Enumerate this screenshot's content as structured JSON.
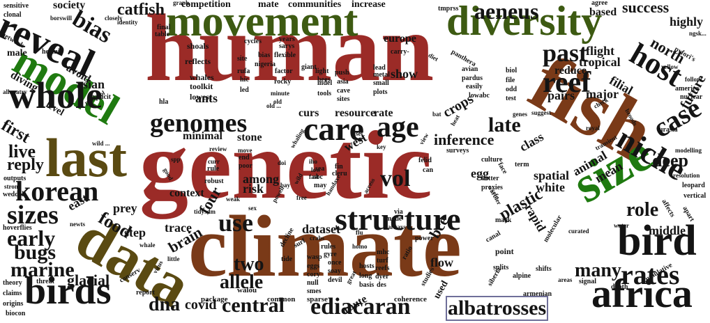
{
  "colors": {
    "red": "#9b2b27",
    "green": "#3d5a12",
    "olive": "#5a4a12",
    "brown": "#7a3a18",
    "black": "#141414",
    "bright_green": "#1f7a10"
  },
  "words": [
    {
      "text": "human",
      "color": "red"
    },
    {
      "text": "genetic",
      "color": "red"
    },
    {
      "text": "climate",
      "color": "brown"
    },
    {
      "text": "movement",
      "color": "green"
    },
    {
      "text": "diversity",
      "color": "green"
    },
    {
      "text": "fish",
      "color": "brown"
    },
    {
      "text": "data",
      "color": "olive"
    },
    {
      "text": "last",
      "color": "olive"
    },
    {
      "text": "model",
      "color": "bright_green"
    },
    {
      "text": "size",
      "color": "bright_green"
    },
    {
      "text": "reveal",
      "color": "black"
    },
    {
      "text": "whole",
      "color": "black"
    },
    {
      "text": "birds",
      "color": "black"
    },
    {
      "text": "bird",
      "color": "black"
    },
    {
      "text": "africa",
      "color": "black"
    },
    {
      "text": "structure",
      "color": "black"
    },
    {
      "text": "genomes",
      "color": "black"
    },
    {
      "text": "care",
      "color": "black"
    },
    {
      "text": "age",
      "color": "black"
    },
    {
      "text": "reef",
      "color": "black"
    },
    {
      "text": "past",
      "color": "black"
    },
    {
      "text": "niche",
      "color": "black"
    },
    {
      "text": "case",
      "color": "black"
    },
    {
      "text": "host",
      "color": "black"
    },
    {
      "text": "korean",
      "color": "black"
    },
    {
      "text": "sizes",
      "color": "black"
    },
    {
      "text": "rates",
      "color": "black"
    },
    {
      "text": "central",
      "color": "black"
    },
    {
      "text": "ediacaran",
      "color": "black"
    },
    {
      "text": "albatrosses",
      "color": "black"
    },
    {
      "text": "aeneus",
      "color": "black"
    },
    {
      "text": "bias",
      "color": "black"
    },
    {
      "text": "catfish",
      "color": "black"
    },
    {
      "text": "use",
      "color": "black"
    },
    {
      "text": "vol",
      "color": "black"
    },
    {
      "text": "late",
      "color": "black"
    },
    {
      "text": "marine",
      "color": "black"
    },
    {
      "text": "early",
      "color": "black"
    },
    {
      "text": "bugs",
      "color": "black"
    },
    {
      "text": "food",
      "color": "black"
    },
    {
      "text": "many",
      "color": "black"
    },
    {
      "text": "role",
      "color": "black"
    },
    {
      "text": "deep",
      "color": "black"
    },
    {
      "text": "two",
      "color": "black"
    },
    {
      "text": "allele",
      "color": "black"
    },
    {
      "text": "dna",
      "color": "black"
    },
    {
      "text": "covid",
      "color": "black"
    },
    {
      "text": "four",
      "color": "black"
    },
    {
      "text": "brain",
      "color": "black"
    },
    {
      "text": "glacial",
      "color": "black"
    },
    {
      "text": "success",
      "color": "black"
    },
    {
      "text": "north",
      "color": "black"
    },
    {
      "text": "highly",
      "color": "black"
    },
    {
      "text": "future",
      "color": "black"
    },
    {
      "text": "middle",
      "color": "black"
    },
    {
      "text": "live",
      "color": "black"
    },
    {
      "text": "first",
      "color": "black"
    },
    {
      "text": "reply",
      "color": "black"
    },
    {
      "text": "asian",
      "color": "black"
    },
    {
      "text": "society",
      "color": "black"
    },
    {
      "text": "competition",
      "color": "black"
    },
    {
      "text": "mate",
      "color": "black"
    },
    {
      "text": "communities",
      "color": "black"
    },
    {
      "text": "increase",
      "color": "black"
    },
    {
      "text": "flight",
      "color": "black"
    },
    {
      "text": "tropical",
      "color": "black"
    },
    {
      "text": "reduce",
      "color": "black"
    },
    {
      "text": "pairs",
      "color": "black"
    },
    {
      "text": "major",
      "color": "black"
    },
    {
      "text": "filial",
      "color": "black"
    },
    {
      "text": "inference",
      "color": "black"
    },
    {
      "text": "crops",
      "color": "black"
    },
    {
      "text": "class",
      "color": "black"
    },
    {
      "text": "egg",
      "color": "black"
    },
    {
      "text": "spatial",
      "color": "black"
    },
    {
      "text": "white",
      "color": "black"
    },
    {
      "text": "animal",
      "color": "black"
    },
    {
      "text": "mean",
      "color": "black"
    },
    {
      "text": "plastic",
      "color": "black"
    },
    {
      "text": "rapid",
      "color": "black"
    },
    {
      "text": "bce",
      "color": "black"
    },
    {
      "text": "flow",
      "color": "black"
    },
    {
      "text": "dataset",
      "color": "black"
    },
    {
      "text": "trace",
      "color": "black"
    },
    {
      "text": "context",
      "color": "black"
    },
    {
      "text": "among",
      "color": "black"
    },
    {
      "text": "risk",
      "color": "black"
    },
    {
      "text": "minimal",
      "color": "black"
    },
    {
      "text": "stone",
      "color": "black"
    },
    {
      "text": "west",
      "color": "black"
    },
    {
      "text": "show",
      "color": "black"
    },
    {
      "text": "europe",
      "color": "black"
    },
    {
      "text": "resource",
      "color": "black"
    },
    {
      "text": "rate",
      "color": "black"
    },
    {
      "text": "curs",
      "color": "black"
    },
    {
      "text": "east",
      "color": "black"
    },
    {
      "text": "prey",
      "color": "black"
    },
    {
      "text": "step",
      "color": "black"
    },
    {
      "text": "ants",
      "color": "black"
    },
    {
      "text": "avoid",
      "color": "black"
    },
    {
      "text": "level",
      "color": "black"
    },
    {
      "text": "diving",
      "color": "black"
    },
    {
      "text": "male",
      "color": "black"
    },
    {
      "text": "route",
      "color": "black"
    },
    {
      "text": "used",
      "color": "black"
    },
    {
      "text": "based",
      "color": "black"
    },
    {
      "text": "agree",
      "color": "black"
    },
    {
      "text": "sensitive",
      "color": "black"
    },
    {
      "text": "clonal",
      "color": "black"
    },
    {
      "text": "network",
      "color": "black"
    },
    {
      "text": "hermit",
      "color": "black"
    },
    {
      "text": "allopatry",
      "color": "black"
    },
    {
      "text": "protocol",
      "color": "black"
    },
    {
      "text": "explicit",
      "color": "black"
    },
    {
      "text": "whales",
      "color": "black"
    },
    {
      "text": "toolkit",
      "color": "black"
    },
    {
      "text": "lowest",
      "color": "black"
    },
    {
      "text": "shoals",
      "color": "black"
    },
    {
      "text": "reflects",
      "color": "black"
    },
    {
      "text": "cycles",
      "color": "black"
    },
    {
      "text": "nigeria",
      "color": "black"
    },
    {
      "text": "giant",
      "color": "black"
    },
    {
      "text": "push",
      "color": "black"
    },
    {
      "text": "asia",
      "color": "black"
    },
    {
      "text": "cave",
      "color": "black"
    },
    {
      "text": "sites",
      "color": "black"
    },
    {
      "text": "tools",
      "color": "black"
    },
    {
      "text": "indel",
      "color": "black"
    },
    {
      "text": "bias",
      "color": "black"
    },
    {
      "text": "panthera",
      "color": "black"
    },
    {
      "text": "avian",
      "color": "black"
    },
    {
      "text": "pardus",
      "color": "black"
    },
    {
      "text": "easily",
      "color": "black"
    },
    {
      "text": "lowabc",
      "color": "black"
    },
    {
      "text": "biol",
      "color": "black"
    },
    {
      "text": "file",
      "color": "black"
    },
    {
      "text": "odd",
      "color": "black"
    },
    {
      "text": "test",
      "color": "black"
    },
    {
      "text": "genes",
      "color": "black"
    },
    {
      "text": "suggest",
      "color": "black"
    },
    {
      "text": "royal",
      "color": "black"
    },
    {
      "text": "broods",
      "color": "black"
    },
    {
      "text": "urasia",
      "color": "black"
    },
    {
      "text": "modelling",
      "color": "black"
    },
    {
      "text": "resolution",
      "color": "black"
    },
    {
      "text": "leopard",
      "color": "black"
    },
    {
      "text": "vertical",
      "color": "black"
    },
    {
      "text": "affects",
      "color": "black"
    },
    {
      "text": "apart",
      "color": "black"
    },
    {
      "text": "curated",
      "color": "black"
    },
    {
      "text": "water",
      "color": "black"
    },
    {
      "text": "molecular",
      "color": "black"
    },
    {
      "text": "shifts",
      "color": "black"
    },
    {
      "text": "alpine",
      "color": "black"
    },
    {
      "text": "areas",
      "color": "black"
    },
    {
      "text": "signal",
      "color": "black"
    },
    {
      "text": "depth",
      "color": "black"
    },
    {
      "text": "cumulative",
      "color": "black"
    },
    {
      "text": "armenian",
      "color": "black"
    },
    {
      "text": "siberia",
      "color": "black"
    },
    {
      "text": "splits",
      "color": "black"
    },
    {
      "text": "point",
      "color": "black"
    },
    {
      "text": "canal",
      "color": "black"
    },
    {
      "text": "studies",
      "color": "black"
    },
    {
      "text": "coherence",
      "color": "black"
    },
    {
      "text": "sparse",
      "color": "black"
    },
    {
      "text": "common",
      "color": "black"
    },
    {
      "text": "walou",
      "color": "black"
    },
    {
      "text": "package",
      "color": "black"
    },
    {
      "text": "report",
      "color": "black"
    },
    {
      "text": "conserv",
      "color": "black"
    },
    {
      "text": "threat",
      "color": "black"
    },
    {
      "text": "theory",
      "color": "black"
    },
    {
      "text": "claims",
      "color": "black"
    },
    {
      "text": "origins",
      "color": "black"
    },
    {
      "text": "biocon",
      "color": "black"
    },
    {
      "text": "hoverflies",
      "color": "black"
    },
    {
      "text": "newts",
      "color": "black"
    },
    {
      "text": "weddell",
      "color": "black"
    },
    {
      "text": "strong",
      "color": "black"
    },
    {
      "text": "outputs",
      "color": "black"
    },
    {
      "text": "whale",
      "color": "black"
    },
    {
      "text": "little",
      "color": "black"
    },
    {
      "text": "virus",
      "color": "black"
    },
    {
      "text": "tidysdm",
      "color": "black"
    },
    {
      "text": "weak",
      "color": "black"
    },
    {
      "text": "sex",
      "color": "black"
    },
    {
      "text": "powell",
      "color": "black"
    },
    {
      "text": "wild",
      "color": "black"
    },
    {
      "text": "free",
      "color": "black"
    },
    {
      "text": "fin",
      "color": "black"
    },
    {
      "text": "cleru",
      "color": "black"
    },
    {
      "text": "sea",
      "color": "black"
    },
    {
      "text": "abc",
      "color": "black"
    },
    {
      "text": "may",
      "color": "black"
    },
    {
      "text": "low",
      "color": "black"
    },
    {
      "text": "fast",
      "color": "black"
    },
    {
      "text": "iho",
      "color": "black"
    },
    {
      "text": "handaxe",
      "color": "black"
    },
    {
      "text": "access",
      "color": "black"
    },
    {
      "text": "flu",
      "color": "black"
    },
    {
      "text": "homo",
      "color": "black"
    },
    {
      "text": "crabs",
      "color": "black"
    },
    {
      "text": "decline",
      "color": "black"
    },
    {
      "text": "surf",
      "color": "black"
    },
    {
      "text": "tide",
      "color": "black"
    },
    {
      "text": "wasp",
      "color": "black"
    },
    {
      "text": "eggs",
      "color": "black"
    },
    {
      "text": "cory",
      "color": "black"
    },
    {
      "text": "null",
      "color": "black"
    },
    {
      "text": "smes",
      "color": "black"
    },
    {
      "text": "rules",
      "color": "black"
    },
    {
      "text": "gyre",
      "color": "black"
    },
    {
      "text": "once",
      "color": "black"
    },
    {
      "text": "soay",
      "color": "black"
    },
    {
      "text": "devil",
      "color": "black"
    },
    {
      "text": "hosts",
      "color": "black"
    },
    {
      "text": "long",
      "color": "black"
    },
    {
      "text": "basis",
      "color": "black"
    },
    {
      "text": "turf",
      "color": "black"
    },
    {
      "text": "reefs",
      "color": "black"
    },
    {
      "text": "dyer",
      "color": "black"
    },
    {
      "text": "des",
      "color": "black"
    },
    {
      "text": "mhc",
      "color": "black"
    },
    {
      "text": "ratio",
      "color": "black"
    },
    {
      "text": "power",
      "color": "black"
    },
    {
      "text": "great",
      "color": "black"
    },
    {
      "text": "always",
      "color": "black"
    },
    {
      "text": "mode",
      "color": "black"
    },
    {
      "text": "via",
      "color": "black"
    },
    {
      "text": "felid",
      "color": "black"
    },
    {
      "text": "can",
      "color": "black"
    },
    {
      "text": "culture",
      "color": "black"
    },
    {
      "text": "better",
      "color": "black"
    },
    {
      "text": "proxies",
      "color": "black"
    },
    {
      "text": "warbler",
      "color": "black"
    },
    {
      "text": "cefe",
      "color": "black"
    },
    {
      "text": "mark",
      "color": "black"
    },
    {
      "text": "term",
      "color": "black"
    },
    {
      "text": "face",
      "color": "black"
    },
    {
      "text": "surveys",
      "color": "black"
    },
    {
      "text": "view",
      "color": "black"
    },
    {
      "text": "heat",
      "color": "black"
    },
    {
      "text": "key",
      "color": "black"
    },
    {
      "text": "bat",
      "color": "black"
    },
    {
      "text": "sei",
      "color": "black"
    },
    {
      "text": "diet",
      "color": "black"
    },
    {
      "text": "carry-",
      "color": "black"
    },
    {
      "text": "lead",
      "color": "black"
    },
    {
      "text": "metal",
      "color": "black"
    },
    {
      "text": "small",
      "color": "black"
    },
    {
      "text": "plots",
      "color": "black"
    },
    {
      "text": "light",
      "color": "black"
    },
    {
      "text": "bees",
      "color": "black"
    },
    {
      "text": "site",
      "color": "black"
    },
    {
      "text": "flexible",
      "color": "black"
    },
    {
      "text": "rufa",
      "color": "black"
    },
    {
      "text": "hic",
      "color": "black"
    },
    {
      "text": "led",
      "color": "black"
    },
    {
      "text": "factor",
      "color": "black"
    },
    {
      "text": "rocky",
      "color": "black"
    },
    {
      "text": "minute",
      "color": "black"
    },
    {
      "text": "old",
      "color": "black"
    },
    {
      "text": "whaling",
      "color": "black"
    },
    {
      "text": "move",
      "color": "black"
    },
    {
      "text": "doi",
      "color": "black"
    },
    {
      "text": "bay",
      "color": "black"
    },
    {
      "text": "poor",
      "color": "black"
    },
    {
      "text": "end",
      "color": "black"
    },
    {
      "text": "rule",
      "color": "black"
    },
    {
      "text": "robust",
      "color": "black"
    },
    {
      "text": "curr",
      "color": "black"
    },
    {
      "text": "review",
      "color": "black"
    },
    {
      "text": "spp",
      "color": "black"
    },
    {
      "text": "good",
      "color": "black"
    },
    {
      "text": "hla",
      "color": "black"
    },
    {
      "text": "identity",
      "color": "black"
    },
    {
      "text": "closely",
      "color": "black"
    },
    {
      "text": "borswill",
      "color": "black"
    },
    {
      "text": "graph",
      "color": "black"
    },
    {
      "text": "final",
      "color": "black"
    },
    {
      "text": "table",
      "color": "black"
    },
    {
      "text": "years",
      "color": "black"
    },
    {
      "text": "sarys",
      "color": "black"
    },
    {
      "text": "tmprss",
      "color": "black"
    },
    {
      "text": "pyfori's",
      "color": "black"
    },
    {
      "text": "yellow",
      "color": "black"
    },
    {
      "text": "follow",
      "color": "black"
    },
    {
      "text": "america",
      "color": "black"
    },
    {
      "text": "nuclear",
      "color": "black"
    },
    {
      "text": "check",
      "color": "black"
    },
    {
      "text": "transient",
      "color": "black"
    },
    {
      "text": "ngsk...",
      "color": "black"
    },
    {
      "text": "wild ...",
      "color": "black"
    },
    {
      "text": "old ...",
      "color": "black"
    }
  ]
}
